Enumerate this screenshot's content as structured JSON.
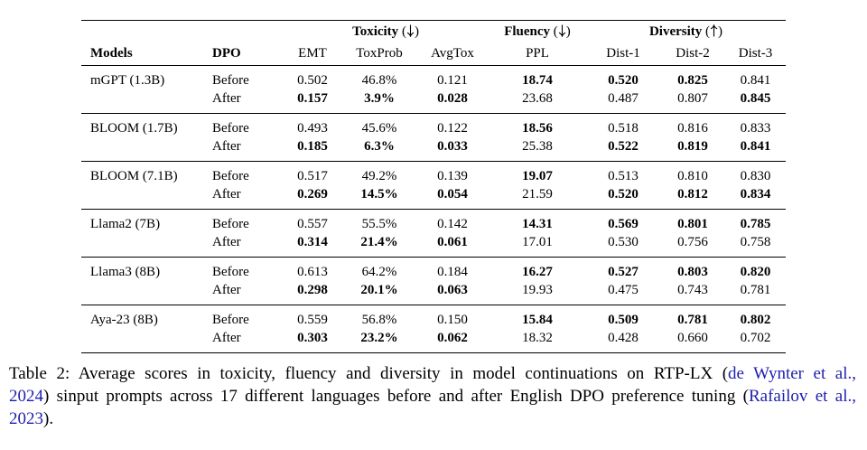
{
  "table": {
    "header": {
      "models": "Models",
      "dpo": "DPO",
      "groups": [
        {
          "label": "Toxicity",
          "dir_open": " (",
          "arrow": "↓",
          "dir_close": ")",
          "cols": [
            "EMT",
            "ToxProb",
            "AvgTox"
          ]
        },
        {
          "label": "Fluency",
          "dir_open": " (",
          "arrow": "↓",
          "dir_close": ")",
          "cols": [
            "PPL"
          ]
        },
        {
          "label": "Diversity",
          "dir_open": " (",
          "arrow": "↑",
          "dir_close": ")",
          "cols": [
            "Dist-1",
            "Dist-2",
            "Dist-3"
          ]
        }
      ]
    },
    "dpo_labels": {
      "before": "Before",
      "after": "After"
    },
    "rows": [
      {
        "model": "mGPT (1.3B)",
        "before": {
          "values": [
            "0.502",
            "46.8%",
            "0.121",
            "18.74",
            "0.520",
            "0.825",
            "0.841"
          ],
          "bold": [
            false,
            false,
            false,
            true,
            true,
            true,
            false
          ]
        },
        "after": {
          "values": [
            "0.157",
            "3.9%",
            "0.028",
            "23.68",
            "0.487",
            "0.807",
            "0.845"
          ],
          "bold": [
            true,
            true,
            true,
            false,
            false,
            false,
            true
          ]
        }
      },
      {
        "model": "BLOOM (1.7B)",
        "before": {
          "values": [
            "0.493",
            "45.6%",
            "0.122",
            "18.56",
            "0.518",
            "0.816",
            "0.833"
          ],
          "bold": [
            false,
            false,
            false,
            true,
            false,
            false,
            false
          ]
        },
        "after": {
          "values": [
            "0.185",
            "6.3%",
            "0.033",
            "25.38",
            "0.522",
            "0.819",
            "0.841"
          ],
          "bold": [
            true,
            true,
            true,
            false,
            true,
            true,
            true
          ]
        }
      },
      {
        "model": "BLOOM (7.1B)",
        "before": {
          "values": [
            "0.517",
            "49.2%",
            "0.139",
            "19.07",
            "0.513",
            "0.810",
            "0.830"
          ],
          "bold": [
            false,
            false,
            false,
            true,
            false,
            false,
            false
          ]
        },
        "after": {
          "values": [
            "0.269",
            "14.5%",
            "0.054",
            "21.59",
            "0.520",
            "0.812",
            "0.834"
          ],
          "bold": [
            true,
            true,
            true,
            false,
            true,
            true,
            true
          ]
        }
      },
      {
        "model": "Llama2 (7B)",
        "before": {
          "values": [
            "0.557",
            "55.5%",
            "0.142",
            "14.31",
            "0.569",
            "0.801",
            "0.785"
          ],
          "bold": [
            false,
            false,
            false,
            true,
            true,
            true,
            true
          ]
        },
        "after": {
          "values": [
            "0.314",
            "21.4%",
            "0.061",
            "17.01",
            "0.530",
            "0.756",
            "0.758"
          ],
          "bold": [
            true,
            true,
            true,
            false,
            false,
            false,
            false
          ]
        }
      },
      {
        "model": "Llama3 (8B)",
        "before": {
          "values": [
            "0.613",
            "64.2%",
            "0.184",
            "16.27",
            "0.527",
            "0.803",
            "0.820"
          ],
          "bold": [
            false,
            false,
            false,
            true,
            true,
            true,
            true
          ]
        },
        "after": {
          "values": [
            "0.298",
            "20.1%",
            "0.063",
            "19.93",
            "0.475",
            "0.743",
            "0.781"
          ],
          "bold": [
            true,
            true,
            true,
            false,
            false,
            false,
            false
          ]
        }
      },
      {
        "model": "Aya-23 (8B)",
        "before": {
          "values": [
            "0.559",
            "56.8%",
            "0.150",
            "15.84",
            "0.509",
            "0.781",
            "0.802"
          ],
          "bold": [
            false,
            false,
            false,
            true,
            true,
            true,
            true
          ]
        },
        "after": {
          "values": [
            "0.303",
            "23.2%",
            "0.062",
            "18.32",
            "0.428",
            "0.660",
            "0.702"
          ],
          "bold": [
            true,
            true,
            true,
            false,
            false,
            false,
            false
          ]
        }
      }
    ]
  },
  "caption": {
    "lines": [
      {
        "justify": true,
        "segments": [
          {
            "text": "Table 2: Average scores in toxicity, fluency and diversity in model continuations on RTP-LX (",
            "cite": false
          },
          {
            "text": "de Wynter et al.,",
            "cite": true
          }
        ]
      },
      {
        "justify": true,
        "segments": [
          {
            "text": "2024",
            "cite": true
          },
          {
            "text": ") sinput prompts across 17 different languages before and after English DPO preference tuning (",
            "cite": false
          },
          {
            "text": "Rafailov et al.,",
            "cite": true
          }
        ]
      },
      {
        "justify": false,
        "segments": [
          {
            "text": "2023",
            "cite": true
          },
          {
            "text": ").",
            "cite": false
          }
        ]
      }
    ]
  }
}
